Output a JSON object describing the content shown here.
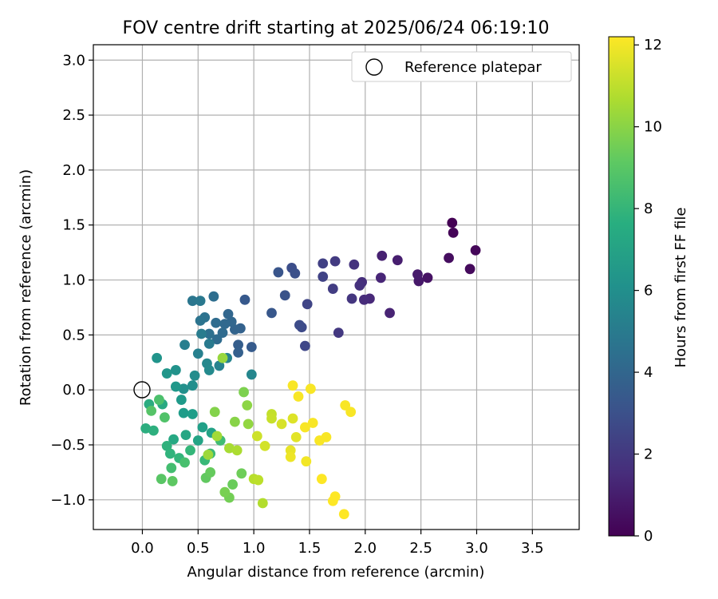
{
  "chart_data": {
    "type": "scatter",
    "title": "FOV centre drift starting at 2025/06/24 06:19:10",
    "xlabel": "Angular distance from reference (arcmin)",
    "ylabel": "Rotation from reference (arcmin)",
    "xlim": [
      -0.44,
      3.92
    ],
    "ylim": [
      -1.27,
      3.14
    ],
    "x_ticks": [
      0.0,
      0.5,
      1.0,
      1.5,
      2.0,
      2.5,
      3.0,
      3.5
    ],
    "x_tick_labels": [
      "0.0",
      "0.5",
      "1.0",
      "1.5",
      "2.0",
      "2.5",
      "3.0",
      "3.5"
    ],
    "y_ticks": [
      -1.0,
      -0.5,
      0.0,
      0.5,
      1.0,
      1.5,
      2.0,
      2.5,
      3.0
    ],
    "y_tick_labels": [
      "−1.0",
      "−0.5",
      "0.0",
      "0.5",
      "1.0",
      "1.5",
      "2.0",
      "2.5",
      "3.0"
    ],
    "grid": true,
    "legend": {
      "position": "top-right",
      "entries": [
        {
          "label": "Reference platepar",
          "marker": "open-circle"
        }
      ]
    },
    "reference_point": {
      "x": 0.0,
      "y": 0.0
    },
    "colorbar": {
      "label": "Hours from first FF file",
      "colormap": "viridis",
      "range": [
        0,
        12.2
      ],
      "ticks": [
        0,
        2,
        4,
        6,
        8,
        10,
        12
      ],
      "tick_labels": [
        "0",
        "2",
        "4",
        "6",
        "8",
        "10",
        "12"
      ]
    },
    "points": [
      {
        "x": 2.78,
        "y": 1.52,
        "t": 0.0
      },
      {
        "x": 2.79,
        "y": 1.43,
        "t": 0.1
      },
      {
        "x": 2.99,
        "y": 1.27,
        "t": 0.2
      },
      {
        "x": 2.94,
        "y": 1.1,
        "t": 0.3
      },
      {
        "x": 2.75,
        "y": 1.2,
        "t": 0.4
      },
      {
        "x": 2.56,
        "y": 1.02,
        "t": 0.6
      },
      {
        "x": 2.48,
        "y": 0.99,
        "t": 0.8
      },
      {
        "x": 2.47,
        "y": 1.05,
        "t": 0.9
      },
      {
        "x": 2.29,
        "y": 1.18,
        "t": 1.0
      },
      {
        "x": 2.15,
        "y": 1.22,
        "t": 1.1
      },
      {
        "x": 2.22,
        "y": 0.7,
        "t": 1.2
      },
      {
        "x": 2.14,
        "y": 1.02,
        "t": 1.3
      },
      {
        "x": 2.04,
        "y": 0.83,
        "t": 1.4
      },
      {
        "x": 1.99,
        "y": 0.82,
        "t": 1.5
      },
      {
        "x": 1.97,
        "y": 0.98,
        "t": 1.6
      },
      {
        "x": 1.95,
        "y": 0.95,
        "t": 1.7
      },
      {
        "x": 1.9,
        "y": 1.14,
        "t": 1.8
      },
      {
        "x": 1.88,
        "y": 0.83,
        "t": 1.9
      },
      {
        "x": 1.76,
        "y": 0.52,
        "t": 2.0
      },
      {
        "x": 1.73,
        "y": 1.17,
        "t": 2.1
      },
      {
        "x": 1.71,
        "y": 0.92,
        "t": 2.2
      },
      {
        "x": 1.62,
        "y": 1.15,
        "t": 2.3
      },
      {
        "x": 1.62,
        "y": 1.03,
        "t": 2.4
      },
      {
        "x": 1.48,
        "y": 0.78,
        "t": 2.5
      },
      {
        "x": 1.46,
        "y": 0.4,
        "t": 2.6
      },
      {
        "x": 1.43,
        "y": 0.57,
        "t": 2.7
      },
      {
        "x": 1.41,
        "y": 0.59,
        "t": 2.8
      },
      {
        "x": 1.34,
        "y": 1.11,
        "t": 2.9
      },
      {
        "x": 1.37,
        "y": 1.06,
        "t": 3.0
      },
      {
        "x": 1.28,
        "y": 0.86,
        "t": 3.1
      },
      {
        "x": 1.22,
        "y": 1.07,
        "t": 3.2
      },
      {
        "x": 1.16,
        "y": 0.7,
        "t": 3.3
      },
      {
        "x": 0.92,
        "y": 0.82,
        "t": 3.4
      },
      {
        "x": 0.98,
        "y": 0.39,
        "t": 3.5
      },
      {
        "x": 0.86,
        "y": 0.41,
        "t": 3.6
      },
      {
        "x": 0.86,
        "y": 0.34,
        "t": 3.7
      },
      {
        "x": 0.88,
        "y": 0.56,
        "t": 3.8
      },
      {
        "x": 0.83,
        "y": 0.55,
        "t": 3.9
      },
      {
        "x": 0.8,
        "y": 0.62,
        "t": 4.0
      },
      {
        "x": 0.77,
        "y": 0.69,
        "t": 4.0
      },
      {
        "x": 0.74,
        "y": 0.6,
        "t": 4.1
      },
      {
        "x": 0.72,
        "y": 0.52,
        "t": 4.2
      },
      {
        "x": 0.67,
        "y": 0.46,
        "t": 4.3
      },
      {
        "x": 0.66,
        "y": 0.61,
        "t": 4.3
      },
      {
        "x": 0.64,
        "y": 0.85,
        "t": 4.4
      },
      {
        "x": 0.6,
        "y": 0.51,
        "t": 4.5
      },
      {
        "x": 0.56,
        "y": 0.66,
        "t": 4.6
      },
      {
        "x": 0.52,
        "y": 0.63,
        "t": 4.7
      },
      {
        "x": 0.45,
        "y": 0.81,
        "t": 4.8
      },
      {
        "x": 0.52,
        "y": 0.81,
        "t": 4.9
      },
      {
        "x": 0.6,
        "y": 0.42,
        "t": 5.0
      },
      {
        "x": 0.53,
        "y": 0.51,
        "t": 5.1
      },
      {
        "x": 0.38,
        "y": 0.41,
        "t": 5.2
      },
      {
        "x": 0.5,
        "y": 0.33,
        "t": 5.3
      },
      {
        "x": 0.69,
        "y": 0.22,
        "t": 5.4
      },
      {
        "x": 0.76,
        "y": 0.29,
        "t": 5.5
      },
      {
        "x": 0.98,
        "y": 0.14,
        "t": 5.6
      },
      {
        "x": 0.58,
        "y": 0.24,
        "t": 5.7
      },
      {
        "x": 0.6,
        "y": 0.18,
        "t": 5.8
      },
      {
        "x": 0.47,
        "y": 0.13,
        "t": 5.9
      },
      {
        "x": 0.45,
        "y": 0.04,
        "t": 6.0
      },
      {
        "x": 0.37,
        "y": 0.01,
        "t": 6.1
      },
      {
        "x": 0.3,
        "y": 0.18,
        "t": 6.2
      },
      {
        "x": 0.13,
        "y": 0.29,
        "t": 6.3
      },
      {
        "x": 0.22,
        "y": 0.15,
        "t": 6.4
      },
      {
        "x": 0.3,
        "y": 0.03,
        "t": 6.5
      },
      {
        "x": 0.35,
        "y": -0.09,
        "t": 6.6
      },
      {
        "x": 0.37,
        "y": -0.21,
        "t": 6.7
      },
      {
        "x": 0.45,
        "y": -0.22,
        "t": 6.8
      },
      {
        "x": 0.54,
        "y": -0.34,
        "t": 6.9
      },
      {
        "x": 0.62,
        "y": -0.39,
        "t": 7.0
      },
      {
        "x": 0.5,
        "y": -0.46,
        "t": 7.1
      },
      {
        "x": 0.39,
        "y": -0.41,
        "t": 7.2
      },
      {
        "x": 0.28,
        "y": -0.45,
        "t": 7.3
      },
      {
        "x": 0.18,
        "y": -0.13,
        "t": 7.4
      },
      {
        "x": 0.06,
        "y": -0.13,
        "t": 7.5
      },
      {
        "x": 0.03,
        "y": -0.35,
        "t": 7.6
      },
      {
        "x": 0.1,
        "y": -0.37,
        "t": 7.7
      },
      {
        "x": 0.22,
        "y": -0.51,
        "t": 7.8
      },
      {
        "x": 0.25,
        "y": -0.58,
        "t": 7.9
      },
      {
        "x": 0.33,
        "y": -0.62,
        "t": 8.0
      },
      {
        "x": 0.43,
        "y": -0.55,
        "t": 8.1
      },
      {
        "x": 0.56,
        "y": -0.64,
        "t": 8.2
      },
      {
        "x": 0.61,
        "y": -0.58,
        "t": 8.3
      },
      {
        "x": 0.7,
        "y": -0.46,
        "t": 8.4
      },
      {
        "x": 0.26,
        "y": -0.71,
        "t": 8.5
      },
      {
        "x": 0.38,
        "y": -0.66,
        "t": 8.6
      },
      {
        "x": 0.15,
        "y": -0.09,
        "t": 8.7
      },
      {
        "x": 0.2,
        "y": -0.25,
        "t": 8.8
      },
      {
        "x": 0.08,
        "y": -0.19,
        "t": 8.9
      },
      {
        "x": 0.17,
        "y": -0.81,
        "t": 9.0
      },
      {
        "x": 0.27,
        "y": -0.83,
        "t": 9.1
      },
      {
        "x": 0.57,
        "y": -0.8,
        "t": 9.2
      },
      {
        "x": 0.61,
        "y": -0.75,
        "t": 9.3
      },
      {
        "x": 0.81,
        "y": -0.86,
        "t": 9.4
      },
      {
        "x": 0.89,
        "y": -0.76,
        "t": 9.5
      },
      {
        "x": 0.78,
        "y": -0.98,
        "t": 9.6
      },
      {
        "x": 0.74,
        "y": -0.93,
        "t": 9.7
      },
      {
        "x": 0.91,
        "y": -0.02,
        "t": 9.8
      },
      {
        "x": 0.65,
        "y": -0.2,
        "t": 9.9
      },
      {
        "x": 0.83,
        "y": -0.29,
        "t": 10.0
      },
      {
        "x": 0.94,
        "y": -0.14,
        "t": 10.1
      },
      {
        "x": 0.95,
        "y": -0.31,
        "t": 10.2
      },
      {
        "x": 0.72,
        "y": 0.29,
        "t": 10.3
      },
      {
        "x": 0.59,
        "y": -0.59,
        "t": 10.4
      },
      {
        "x": 0.67,
        "y": -0.42,
        "t": 10.5
      },
      {
        "x": 0.78,
        "y": -0.53,
        "t": 10.6
      },
      {
        "x": 0.85,
        "y": -0.55,
        "t": 10.7
      },
      {
        "x": 1.08,
        "y": -1.03,
        "t": 10.8
      },
      {
        "x": 1.0,
        "y": -0.81,
        "t": 10.9
      },
      {
        "x": 1.04,
        "y": -0.82,
        "t": 11.0
      },
      {
        "x": 1.16,
        "y": -0.22,
        "t": 11.1
      },
      {
        "x": 1.16,
        "y": -0.26,
        "t": 11.2
      },
      {
        "x": 1.03,
        "y": -0.42,
        "t": 11.3
      },
      {
        "x": 1.1,
        "y": -0.51,
        "t": 11.4
      },
      {
        "x": 1.25,
        "y": -0.31,
        "t": 11.5
      },
      {
        "x": 1.35,
        "y": -0.26,
        "t": 11.6
      },
      {
        "x": 1.38,
        "y": -0.43,
        "t": 11.7
      },
      {
        "x": 1.33,
        "y": -0.55,
        "t": 11.8
      },
      {
        "x": 1.33,
        "y": -0.61,
        "t": 11.9
      },
      {
        "x": 1.47,
        "y": -0.65,
        "t": 12.0
      },
      {
        "x": 1.51,
        "y": 0.01,
        "t": 12.1
      },
      {
        "x": 1.35,
        "y": 0.04,
        "t": 12.1
      },
      {
        "x": 1.4,
        "y": -0.06,
        "t": 12.1
      },
      {
        "x": 1.82,
        "y": -0.14,
        "t": 12.1
      },
      {
        "x": 1.87,
        "y": -0.2,
        "t": 12.1
      },
      {
        "x": 1.53,
        "y": -0.3,
        "t": 12.1
      },
      {
        "x": 1.46,
        "y": -0.34,
        "t": 12.1
      },
      {
        "x": 1.59,
        "y": -0.46,
        "t": 12.1
      },
      {
        "x": 1.65,
        "y": -0.43,
        "t": 12.1
      },
      {
        "x": 1.61,
        "y": -0.81,
        "t": 12.2
      },
      {
        "x": 1.73,
        "y": -0.97,
        "t": 12.2
      },
      {
        "x": 1.71,
        "y": -1.01,
        "t": 12.2
      },
      {
        "x": 1.81,
        "y": -1.13,
        "t": 12.2
      }
    ]
  }
}
